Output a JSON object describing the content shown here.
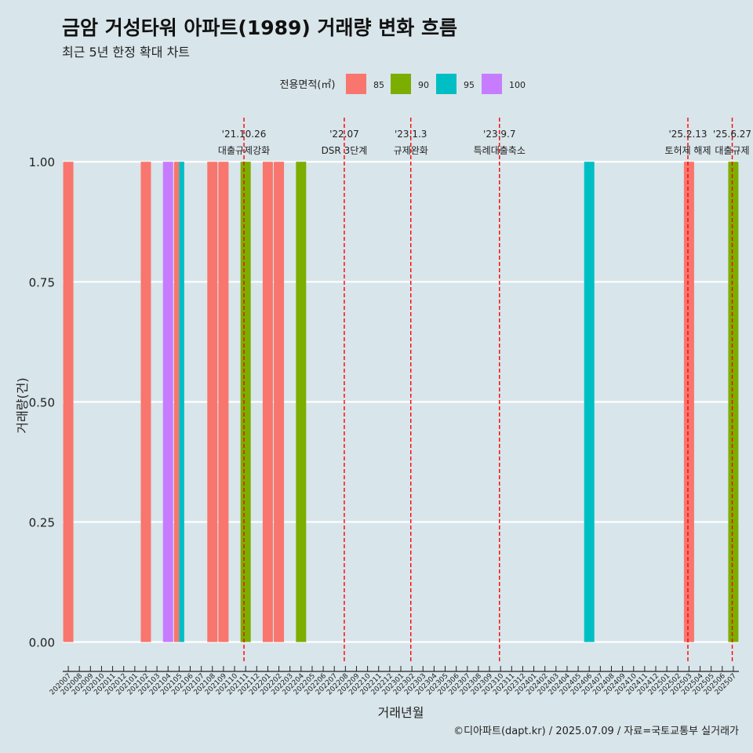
{
  "chart_data": {
    "type": "bar",
    "title": "금암 거성타워 아파트(1989) 거래량 변화 흐름",
    "subtitle": "최근 5년 한정 확대 차트",
    "xlabel": "거래년월",
    "ylabel": "거래량(건)",
    "ylim": [
      -0.04,
      1.1
    ],
    "yticks": [
      "0.00",
      "0.25",
      "0.50",
      "0.75",
      "1.00"
    ],
    "ytick_values": [
      0,
      0.25,
      0.5,
      0.75,
      1.0
    ],
    "grid": true,
    "legend": {
      "title": "전용면적(㎡)",
      "placement": "top-center",
      "entries": [
        {
          "label": "85",
          "color": "#f8766d"
        },
        {
          "label": "90",
          "color": "#7cae00"
        },
        {
          "label": "95",
          "color": "#00bfc4"
        },
        {
          "label": "100",
          "color": "#c77cff"
        }
      ]
    },
    "categories": [
      "202007",
      "202008",
      "202009",
      "202010",
      "202011",
      "202012",
      "202101",
      "202102",
      "202103",
      "202104",
      "202105",
      "202106",
      "202107",
      "202108",
      "202109",
      "202110",
      "202111",
      "202112",
      "202201",
      "202202",
      "202203",
      "202204",
      "202205",
      "202206",
      "202207",
      "202208",
      "202209",
      "202210",
      "202211",
      "202212",
      "202301",
      "202302",
      "202303",
      "202304",
      "202305",
      "202306",
      "202307",
      "202308",
      "202309",
      "202310",
      "202311",
      "202312",
      "202401",
      "202402",
      "202403",
      "202404",
      "202405",
      "202406",
      "202407",
      "202408",
      "202409",
      "202410",
      "202411",
      "202412",
      "202501",
      "202502",
      "202503",
      "202504",
      "202505",
      "202506",
      "202507"
    ],
    "bars": [
      {
        "month": "202007",
        "area": "85",
        "value": 1,
        "color": "#f8766d"
      },
      {
        "month": "202102",
        "area": "85",
        "value": 1,
        "color": "#f8766d"
      },
      {
        "month": "202104",
        "area": "100",
        "value": 1,
        "color": "#c77cff"
      },
      {
        "month": "202105",
        "area": "85",
        "value": 1,
        "color": "#f8766d"
      },
      {
        "month": "202105",
        "area": "95",
        "value": 1,
        "color": "#00bfc4"
      },
      {
        "month": "202108",
        "area": "85",
        "value": 1,
        "color": "#f8766d"
      },
      {
        "month": "202109",
        "area": "85",
        "value": 1,
        "color": "#f8766d"
      },
      {
        "month": "202111",
        "area": "90",
        "value": 1,
        "color": "#7cae00"
      },
      {
        "month": "202201",
        "area": "85",
        "value": 1,
        "color": "#f8766d"
      },
      {
        "month": "202202",
        "area": "85",
        "value": 1,
        "color": "#f8766d"
      },
      {
        "month": "202204",
        "area": "90",
        "value": 1,
        "color": "#7cae00"
      },
      {
        "month": "202406",
        "area": "95",
        "value": 1,
        "color": "#00bfc4"
      },
      {
        "month": "202503",
        "area": "85",
        "value": 1,
        "color": "#f8766d"
      },
      {
        "month": "202507",
        "area": "90",
        "value": 1,
        "color": "#7cae00"
      }
    ],
    "annotations": [
      {
        "month_pos": 15.85,
        "date": "'21.10.26",
        "label": "대출규제강화"
      },
      {
        "month_pos": 24.9,
        "date": "'22.07",
        "label": "DSR 3단계"
      },
      {
        "month_pos": 30.9,
        "date": "'23.1.3",
        "label": "규제완화"
      },
      {
        "month_pos": 38.9,
        "date": "'23.9.7",
        "label": "특례대출축소"
      },
      {
        "month_pos": 55.9,
        "date": "'25.2.13",
        "label": "토허제 해제"
      },
      {
        "month_pos": 59.9,
        "date": "'25.6.27",
        "label": "대출규제"
      }
    ],
    "annotation_color": "#ff0000",
    "caption": "©디아파트(dapt.kr) / 2025.07.09 / 자료=국토교통부 실거래가"
  }
}
